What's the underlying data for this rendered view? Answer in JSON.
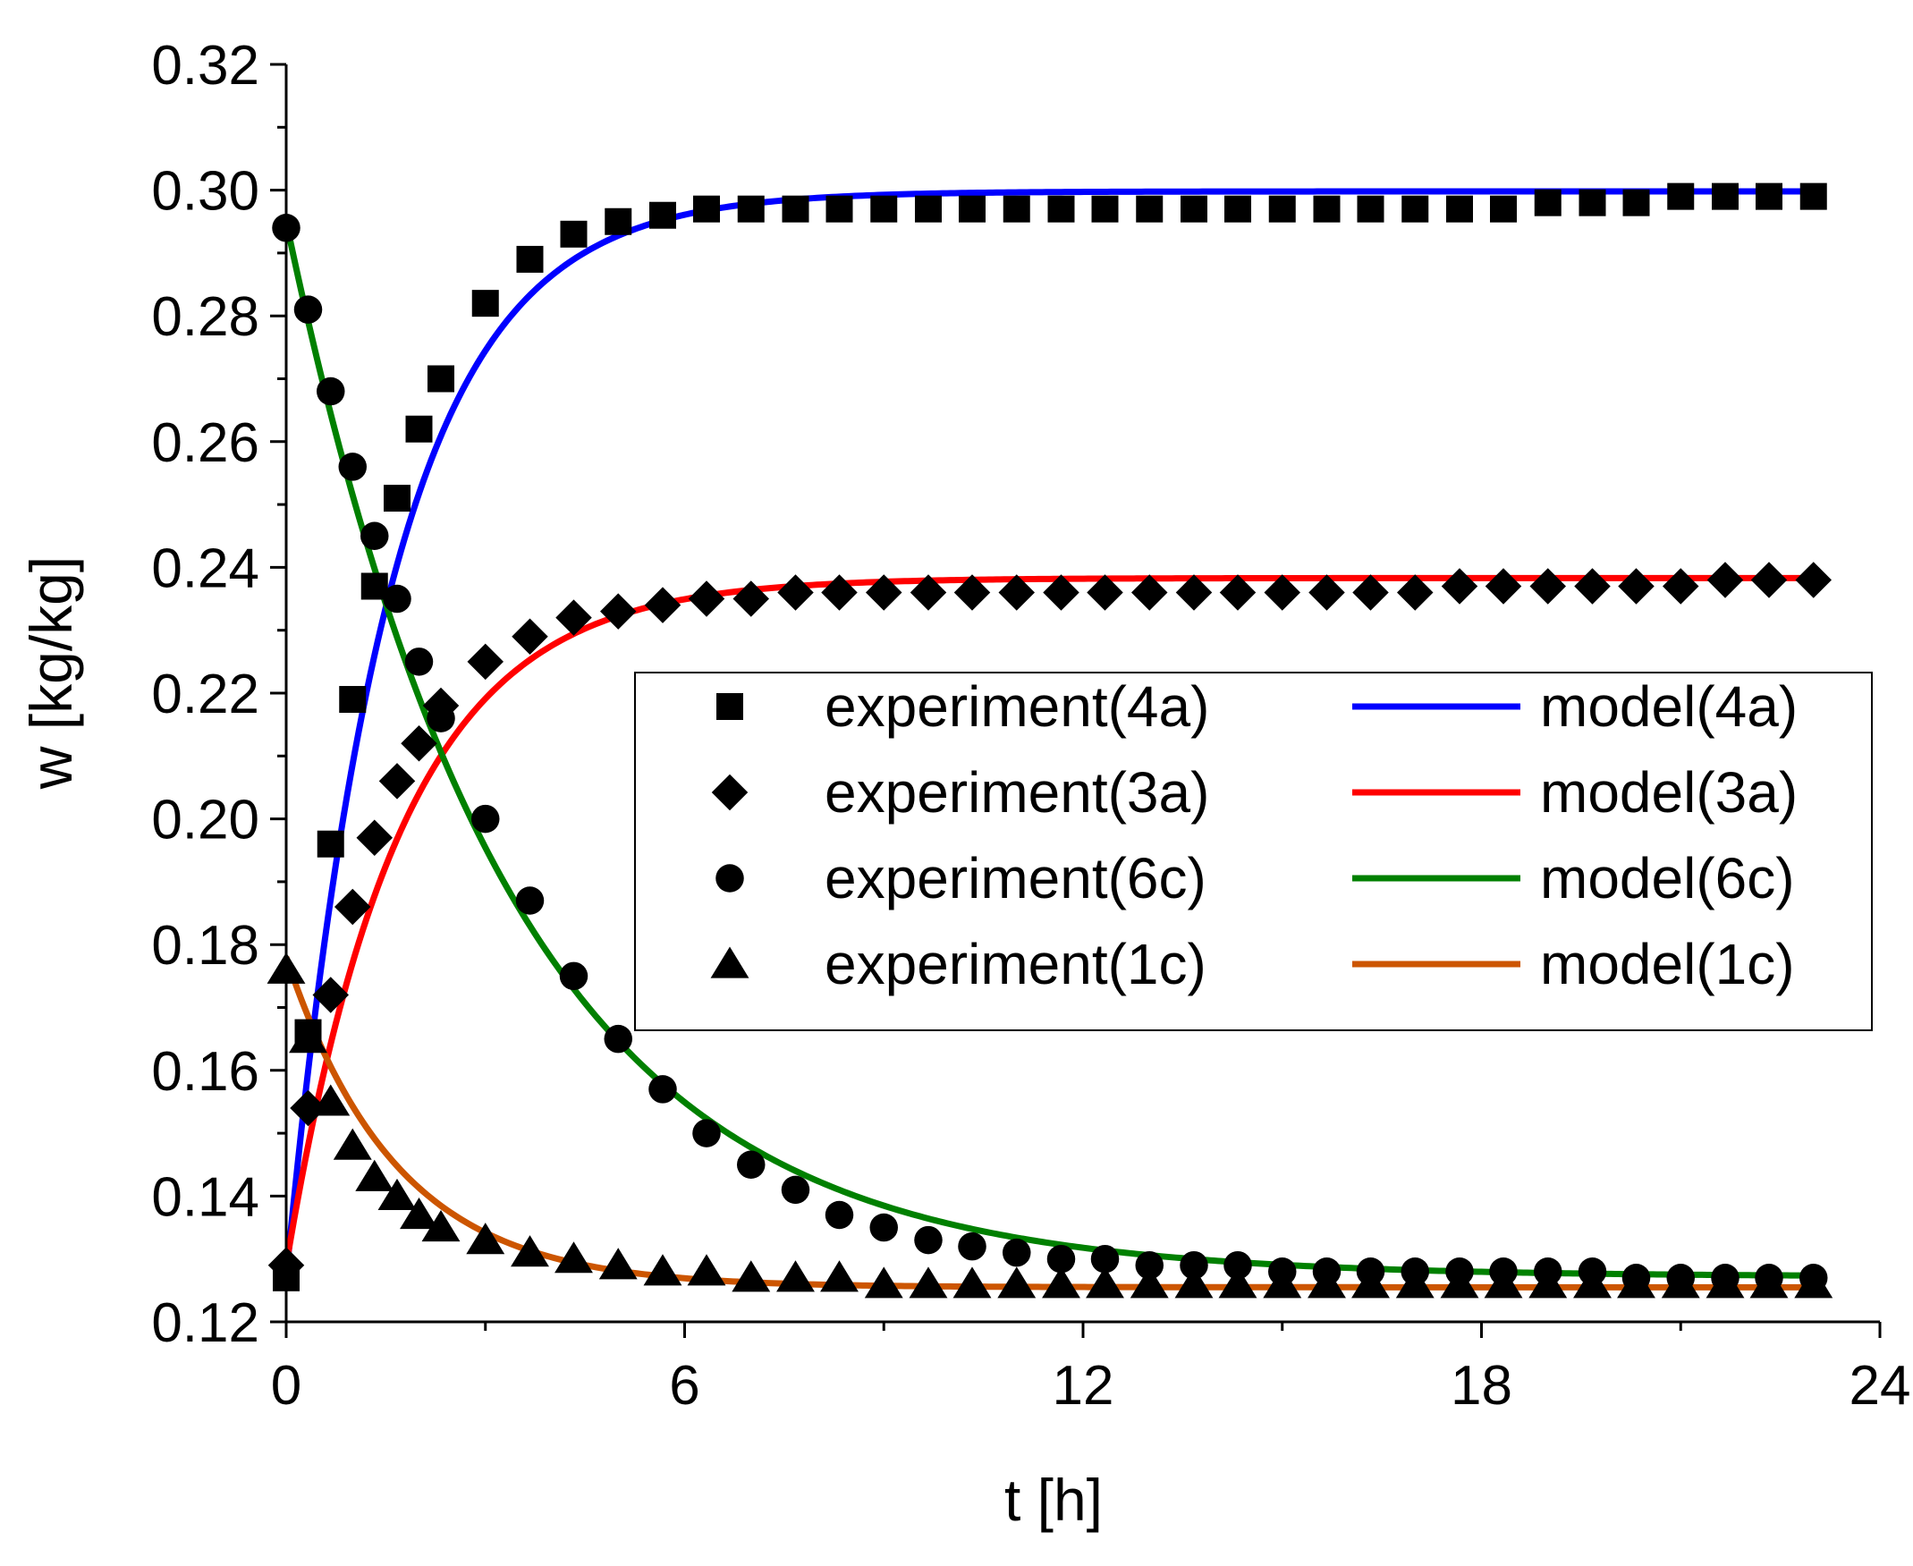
{
  "chart_data": {
    "type": "scatter",
    "title": "",
    "xlabel": "t [h]",
    "ylabel": "w [kg/kg]",
    "xlim": [
      0,
      24
    ],
    "ylim": [
      0.12,
      0.32
    ],
    "xticks": [
      0,
      6,
      12,
      18,
      24
    ],
    "xtick_labels": [
      "0",
      "6",
      "12",
      "18",
      "24"
    ],
    "yticks": [
      0.12,
      0.14,
      0.16,
      0.18,
      0.2,
      0.22,
      0.24,
      0.26,
      0.28,
      0.3,
      0.32
    ],
    "ytick_labels": [
      "0.12",
      "0.14",
      "0.16",
      "0.18",
      "0.20",
      "0.22",
      "0.24",
      "0.26",
      "0.28",
      "0.30",
      "0.32"
    ],
    "grid": false,
    "legend_position": "center-right",
    "experiment_x": [
      0,
      0.33,
      0.67,
      1,
      1.33,
      1.67,
      2,
      2.33,
      3,
      3.67,
      4.33,
      5,
      5.67,
      6.33,
      7,
      7.67,
      8.33,
      9,
      9.67,
      10.33,
      11,
      11.67,
      12.33,
      13,
      13.67,
      14.33,
      15,
      15.67,
      16.33,
      17,
      17.67,
      18.33,
      19,
      19.67,
      20.33,
      21,
      21.67,
      22.33,
      23
    ],
    "series": [
      {
        "name": "experiment(4a)",
        "kind": "scatter",
        "marker": "square",
        "color": "#000000",
        "values": [
          0.127,
          0.166,
          0.196,
          0.219,
          0.237,
          0.251,
          0.262,
          0.27,
          0.282,
          0.289,
          0.293,
          0.295,
          0.296,
          0.297,
          0.297,
          0.297,
          0.297,
          0.297,
          0.297,
          0.297,
          0.297,
          0.297,
          0.297,
          0.297,
          0.297,
          0.297,
          0.297,
          0.297,
          0.297,
          0.297,
          0.297,
          0.297,
          0.298,
          0.298,
          0.298,
          0.299,
          0.299,
          0.299,
          0.299
        ]
      },
      {
        "name": "experiment(3a)",
        "kind": "scatter",
        "marker": "diamond",
        "color": "#000000",
        "values": [
          0.129,
          0.154,
          0.172,
          0.186,
          0.197,
          0.206,
          0.212,
          0.218,
          0.225,
          0.229,
          0.232,
          0.233,
          0.234,
          0.235,
          0.235,
          0.236,
          0.236,
          0.236,
          0.236,
          0.236,
          0.236,
          0.236,
          0.236,
          0.236,
          0.236,
          0.236,
          0.236,
          0.236,
          0.236,
          0.236,
          0.237,
          0.237,
          0.237,
          0.237,
          0.237,
          0.237,
          0.238,
          0.238,
          0.238
        ]
      },
      {
        "name": "experiment(6c)",
        "kind": "scatter",
        "marker": "circle",
        "color": "#000000",
        "values": [
          0.294,
          0.281,
          0.268,
          0.256,
          0.245,
          0.235,
          0.225,
          0.216,
          0.2,
          0.187,
          0.175,
          0.165,
          0.157,
          0.15,
          0.145,
          0.141,
          0.137,
          0.135,
          0.133,
          0.132,
          0.131,
          0.13,
          0.13,
          0.129,
          0.129,
          0.129,
          0.128,
          0.128,
          0.128,
          0.128,
          0.128,
          0.128,
          0.128,
          0.128,
          0.127,
          0.127,
          0.127,
          0.127,
          0.127
        ]
      },
      {
        "name": "experiment(1c)",
        "kind": "scatter",
        "marker": "triangle",
        "color": "#000000",
        "values": [
          0.176,
          0.165,
          0.155,
          0.148,
          0.143,
          0.14,
          0.137,
          0.135,
          0.133,
          0.131,
          0.13,
          0.129,
          0.128,
          0.128,
          0.127,
          0.127,
          0.127,
          0.126,
          0.126,
          0.126,
          0.126,
          0.126,
          0.126,
          0.126,
          0.126,
          0.126,
          0.126,
          0.126,
          0.126,
          0.126,
          0.126,
          0.126,
          0.126,
          0.126,
          0.126,
          0.126,
          0.126,
          0.126,
          0.126
        ]
      },
      {
        "name": "model(4a)",
        "kind": "line",
        "color": "#0000ff",
        "w0": 0.127,
        "w_inf": 0.2998,
        "k": 0.64,
        "t_range": [
          0,
          23
        ]
      },
      {
        "name": "model(3a)",
        "kind": "line",
        "color": "#ff0000",
        "w0": 0.129,
        "w_inf": 0.2383,
        "k": 0.58,
        "t_range": [
          0,
          23
        ]
      },
      {
        "name": "model(6c)",
        "kind": "line",
        "color": "#008000",
        "w0": 0.295,
        "w_inf": 0.1272,
        "k": 0.3,
        "t_range": [
          0,
          23
        ]
      },
      {
        "name": "model(1c)",
        "kind": "line",
        "color": "#cc5500",
        "w0": 0.178,
        "w_inf": 0.1255,
        "k": 0.6,
        "t_range": [
          0,
          23
        ]
      }
    ]
  }
}
